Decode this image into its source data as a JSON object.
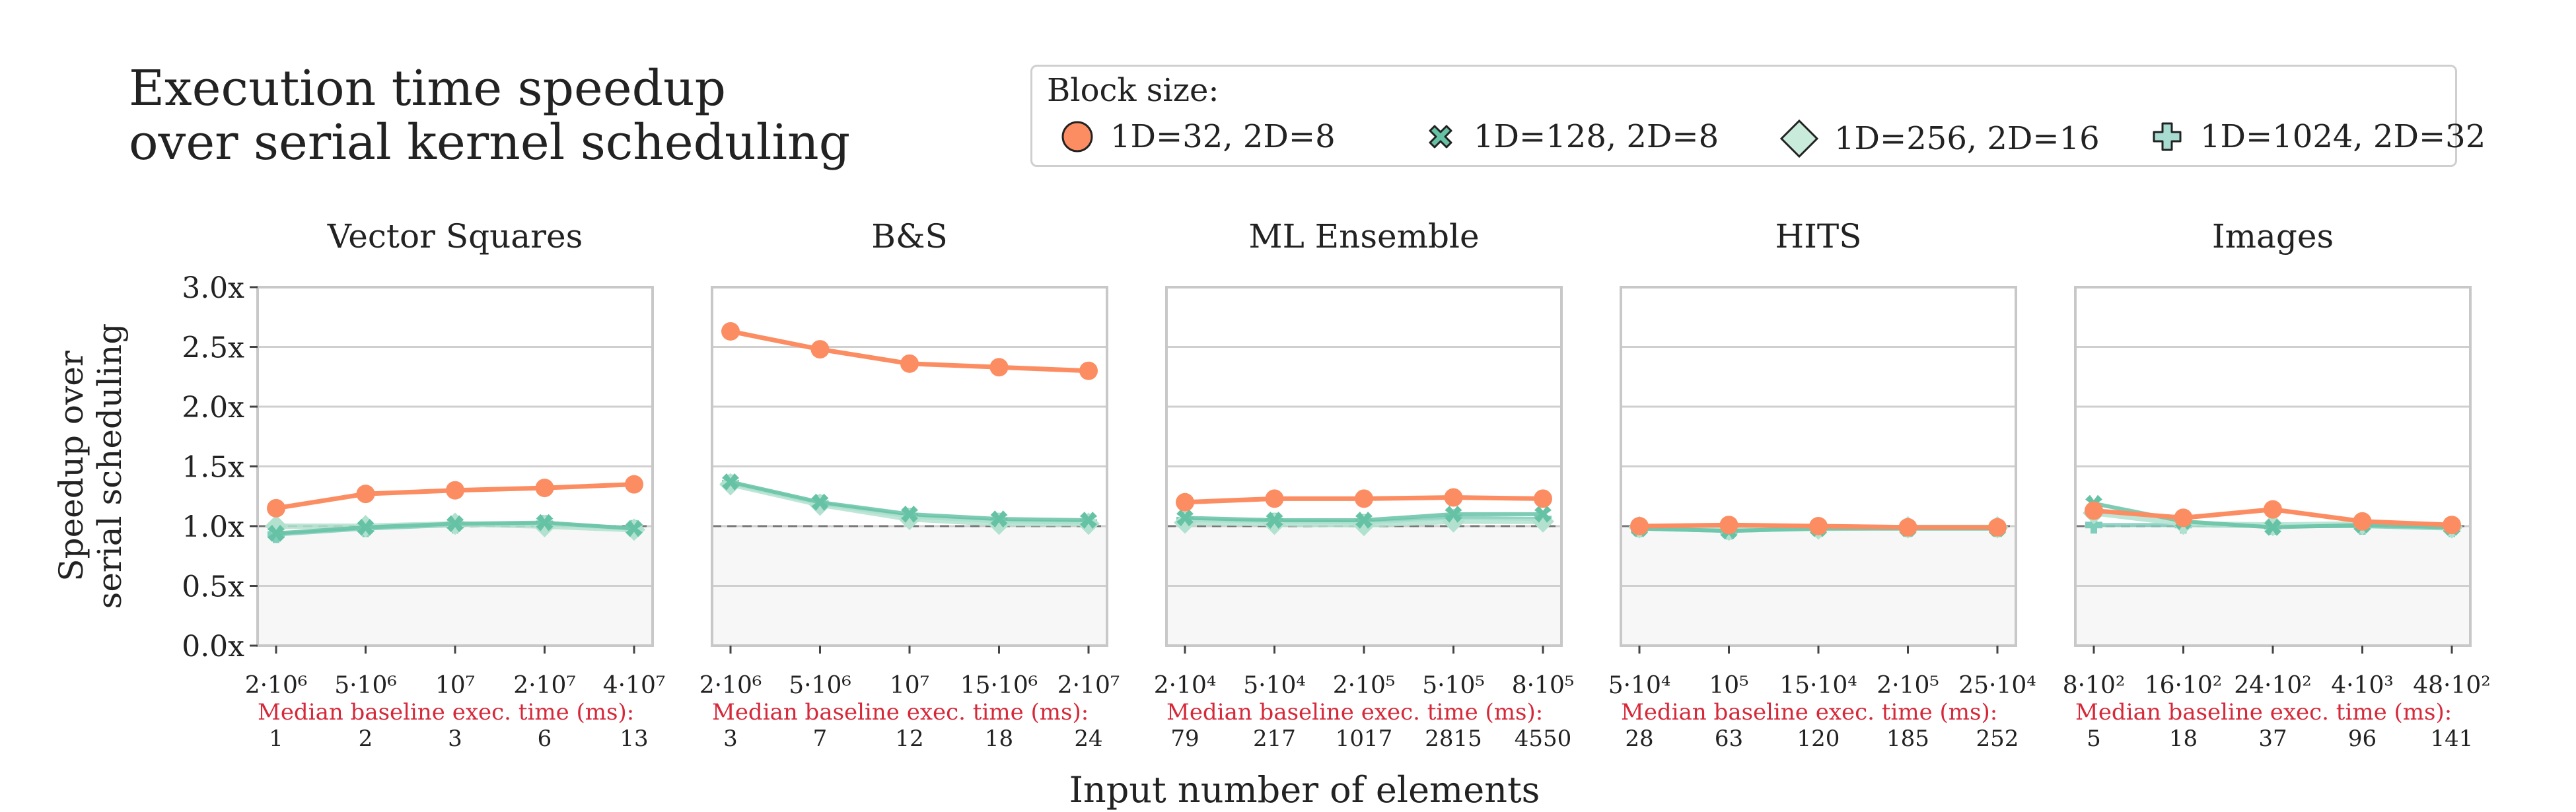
{
  "title_lines": [
    "Execution time speedup",
    "over serial kernel scheduling"
  ],
  "legend": {
    "title": "Block size:",
    "entries": [
      {
        "label": "1D=32, 2D=8",
        "marker": "circle",
        "color": "#fc8d62"
      },
      {
        "label": "1D=128, 2D=8",
        "marker": "x",
        "color": "#66c2a5"
      },
      {
        "label": "1D=256, 2D=16",
        "marker": "diamond",
        "color": "#b2e2cf"
      },
      {
        "label": "1D=1024, 2D=32",
        "marker": "plus",
        "color": "#7fcdbb"
      }
    ]
  },
  "axes": {
    "ylabel_lines": [
      "Speedup over",
      "serial scheduling"
    ],
    "xlabel": "Input number of elements",
    "baseline_label": "Median baseline exec. time (ms):",
    "ylim": [
      0,
      3
    ],
    "yticks": [
      "0.0x",
      "0.5x",
      "1.0x",
      "1.5x",
      "2.0x",
      "2.5x",
      "3.0x"
    ],
    "reference_line": 1.0
  },
  "chart_data": [
    {
      "type": "line",
      "title": "Vector Squares",
      "categories": [
        "2·10⁶",
        "5·10⁶",
        "10⁷",
        "2·10⁷",
        "4·10⁷"
      ],
      "baseline_ms": [
        "1",
        "2",
        "3",
        "6",
        "13"
      ],
      "series": [
        {
          "name": "1D=32, 2D=8",
          "values": [
            1.15,
            1.27,
            1.3,
            1.32,
            1.35
          ]
        },
        {
          "name": "1D=128, 2D=8",
          "values": [
            0.94,
            0.99,
            1.02,
            1.03,
            0.98
          ]
        },
        {
          "name": "1D=256, 2D=16",
          "values": [
            1.0,
            1.0,
            1.02,
            1.0,
            0.97
          ]
        },
        {
          "name": "1D=1024, 2D=32",
          "values": [
            0.93,
            0.98,
            1.01,
            1.02,
            0.98
          ]
        }
      ]
    },
    {
      "type": "line",
      "title": "B&S",
      "categories": [
        "2·10⁶",
        "5·10⁶",
        "10⁷",
        "15·10⁶",
        "2·10⁷"
      ],
      "baseline_ms": [
        "3",
        "7",
        "12",
        "18",
        "24"
      ],
      "series": [
        {
          "name": "1D=32, 2D=8",
          "values": [
            2.63,
            2.48,
            2.36,
            2.33,
            2.3
          ]
        },
        {
          "name": "1D=128, 2D=8",
          "values": [
            1.37,
            1.2,
            1.1,
            1.06,
            1.05
          ]
        },
        {
          "name": "1D=256, 2D=16",
          "values": [
            1.35,
            1.18,
            1.06,
            1.02,
            1.02
          ]
        },
        {
          "name": "1D=1024, 2D=32",
          "values": [
            1.36,
            1.19,
            1.08,
            1.04,
            1.03
          ]
        }
      ]
    },
    {
      "type": "line",
      "title": "ML Ensemble",
      "categories": [
        "2·10⁴",
        "5·10⁴",
        "2·10⁵",
        "5·10⁵",
        "8·10⁵"
      ],
      "baseline_ms": [
        "79",
        "217",
        "1017",
        "2815",
        "4550"
      ],
      "series": [
        {
          "name": "1D=32, 2D=8",
          "values": [
            1.2,
            1.23,
            1.23,
            1.24,
            1.23
          ]
        },
        {
          "name": "1D=128, 2D=8",
          "values": [
            1.07,
            1.05,
            1.05,
            1.1,
            1.1
          ]
        },
        {
          "name": "1D=256, 2D=16",
          "values": [
            1.03,
            1.02,
            1.01,
            1.04,
            1.04
          ]
        },
        {
          "name": "1D=1024, 2D=32",
          "values": [
            1.05,
            1.04,
            1.03,
            1.07,
            1.06
          ]
        }
      ]
    },
    {
      "type": "line",
      "title": "HITS",
      "categories": [
        "5·10⁴",
        "10⁵",
        "15·10⁴",
        "2·10⁵",
        "25·10⁴"
      ],
      "baseline_ms": [
        "28",
        "63",
        "120",
        "185",
        "252"
      ],
      "series": [
        {
          "name": "1D=32, 2D=8",
          "values": [
            1.0,
            1.01,
            1.0,
            0.99,
            0.99
          ]
        },
        {
          "name": "1D=128, 2D=8",
          "values": [
            0.98,
            0.96,
            0.98,
            0.98,
            0.98
          ]
        },
        {
          "name": "1D=256, 2D=16",
          "values": [
            0.99,
            0.97,
            0.98,
            0.99,
            0.99
          ]
        },
        {
          "name": "1D=1024, 2D=32",
          "values": [
            0.98,
            0.96,
            0.98,
            0.98,
            0.98
          ]
        }
      ]
    },
    {
      "type": "line",
      "title": "Images",
      "categories": [
        "8·10²",
        "16·10²",
        "24·10²",
        "4·10³",
        "48·10²"
      ],
      "baseline_ms": [
        "5",
        "18",
        "37",
        "96",
        "141"
      ],
      "series": [
        {
          "name": "1D=32, 2D=8",
          "values": [
            1.13,
            1.07,
            1.14,
            1.04,
            1.01
          ]
        },
        {
          "name": "1D=128, 2D=8",
          "values": [
            1.19,
            1.04,
            0.99,
            1.01,
            0.99
          ]
        },
        {
          "name": "1D=256, 2D=16",
          "values": [
            1.11,
            1.02,
            1.01,
            1.02,
            0.99
          ]
        },
        {
          "name": "1D=1024, 2D=32",
          "values": [
            1.01,
            1.01,
            1.0,
            1.0,
            0.98
          ]
        }
      ]
    }
  ]
}
